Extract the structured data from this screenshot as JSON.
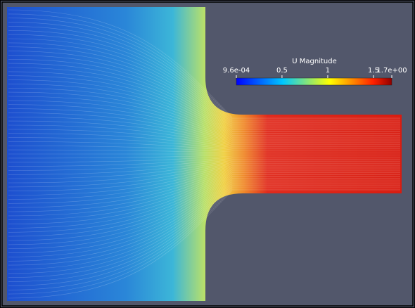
{
  "colorbar": {
    "title": "U Magnitude",
    "range": [
      0.00096,
      1.7
    ],
    "ticks": [
      {
        "value": 0.00096,
        "label": "9.6e-04"
      },
      0.5,
      1,
      1.5,
      {
        "value": 1.7,
        "label": "1.7e+00"
      }
    ]
  }
}
